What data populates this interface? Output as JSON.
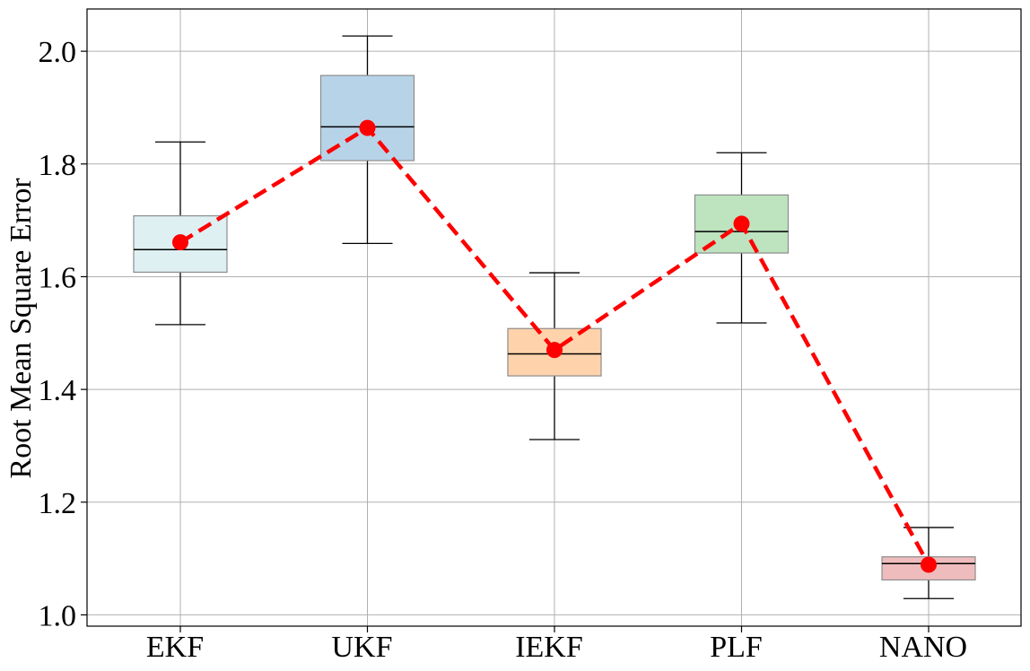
{
  "chart_data": {
    "type": "box",
    "title": "",
    "xlabel": "",
    "ylabel": "Root Mean Square Error",
    "categories": [
      "EKF",
      "UKF",
      "IEKF",
      "PLF",
      "NANO"
    ],
    "ylim": [
      0.98,
      2.075
    ],
    "yticks": [
      1.0,
      1.2,
      1.4,
      1.6,
      1.8,
      2.0
    ],
    "ytick_labels": [
      "1.0",
      "1.2",
      "1.4",
      "1.6",
      "1.8",
      "2.0"
    ],
    "grid": true,
    "boxes": [
      {
        "category": "EKF",
        "whisker_low": 1.515,
        "q1": 1.608,
        "median": 1.648,
        "q3": 1.708,
        "whisker_high": 1.839,
        "color": "#dff0f3"
      },
      {
        "category": "UKF",
        "whisker_low": 1.659,
        "q1": 1.806,
        "median": 1.866,
        "q3": 1.957,
        "whisker_high": 2.027,
        "color": "#b7d3e8"
      },
      {
        "category": "IEKF",
        "whisker_low": 1.311,
        "q1": 1.424,
        "median": 1.463,
        "q3": 1.508,
        "whisker_high": 1.607,
        "color": "#fed3ac"
      },
      {
        "category": "PLF",
        "whisker_low": 1.518,
        "q1": 1.642,
        "median": 1.68,
        "q3": 1.745,
        "whisker_high": 1.82,
        "color": "#bde3bf"
      },
      {
        "category": "NANO",
        "whisker_low": 1.029,
        "q1": 1.062,
        "median": 1.091,
        "q3": 1.103,
        "whisker_high": 1.155,
        "color": "#efbcbd"
      }
    ],
    "mean_line": {
      "values": [
        1.661,
        1.864,
        1.47,
        1.694,
        1.089
      ],
      "color": "#ff0000",
      "style": "dashed",
      "marker": "circle"
    }
  }
}
